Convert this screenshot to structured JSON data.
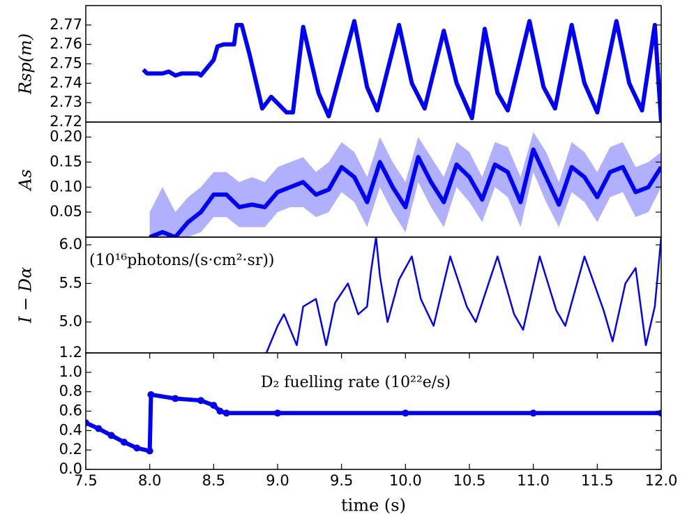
{
  "chart_data": [
    {
      "type": "line",
      "ylabel": "Rsp(m)",
      "color": "#0000ff",
      "xlim": [
        7.5,
        12.0
      ],
      "ylim": [
        2.72,
        2.78
      ],
      "yticks": [
        2.72,
        2.73,
        2.74,
        2.75,
        2.76,
        2.77
      ],
      "x": [
        7.95,
        7.98,
        8.05,
        8.1,
        8.15,
        8.2,
        8.25,
        8.3,
        8.38,
        8.4,
        8.45,
        8.5,
        8.53,
        8.58,
        8.62,
        8.66,
        8.68,
        8.72,
        8.78,
        8.88,
        8.95,
        9.07,
        9.12,
        9.2,
        9.32,
        9.4,
        9.6,
        9.7,
        9.78,
        9.95,
        10.05,
        10.15,
        10.3,
        10.4,
        10.52,
        10.62,
        10.72,
        10.8,
        10.97,
        11.08,
        11.17,
        11.3,
        11.4,
        11.5,
        11.65,
        11.75,
        11.85,
        11.95,
        12.0
      ],
      "values": [
        2.747,
        2.745,
        2.745,
        2.745,
        2.746,
        2.744,
        2.745,
        2.745,
        2.745,
        2.744,
        2.748,
        2.752,
        2.759,
        2.76,
        2.76,
        2.76,
        2.77,
        2.77,
        2.755,
        2.727,
        2.733,
        2.725,
        2.725,
        2.769,
        2.735,
        2.723,
        2.772,
        2.738,
        2.726,
        2.77,
        2.74,
        2.727,
        2.767,
        2.74,
        2.722,
        2.768,
        2.735,
        2.726,
        2.772,
        2.738,
        2.727,
        2.77,
        2.74,
        2.725,
        2.772,
        2.74,
        2.726,
        2.77,
        2.72
      ]
    },
    {
      "type": "line",
      "ylabel": "As",
      "color": "#0000ff",
      "band_color": "#b0b0ff",
      "xlim": [
        7.5,
        12.0
      ],
      "ylim": [
        0,
        0.23
      ],
      "yticks": [
        0.05,
        {
          "value": 0.1,
          "label": "0.10"
        },
        0.15,
        {
          "value": 0.2,
          "label": "0.20"
        }
      ],
      "x": [
        8.0,
        8.1,
        8.2,
        8.3,
        8.4,
        8.5,
        8.6,
        8.7,
        8.8,
        8.9,
        9.0,
        9.1,
        9.2,
        9.3,
        9.4,
        9.5,
        9.6,
        9.7,
        9.8,
        9.9,
        10.0,
        10.1,
        10.2,
        10.3,
        10.4,
        10.5,
        10.6,
        10.7,
        10.8,
        10.9,
        11.0,
        11.1,
        11.2,
        11.3,
        11.4,
        11.5,
        11.6,
        11.7,
        11.8,
        11.9,
        12.0
      ],
      "values": [
        0.0,
        0.01,
        0.0,
        0.03,
        0.05,
        0.085,
        0.085,
        0.06,
        0.065,
        0.06,
        0.09,
        0.1,
        0.11,
        0.085,
        0.095,
        0.14,
        0.12,
        0.07,
        0.15,
        0.1,
        0.06,
        0.16,
        0.11,
        0.07,
        0.145,
        0.12,
        0.075,
        0.145,
        0.13,
        0.07,
        0.175,
        0.12,
        0.065,
        0.14,
        0.12,
        0.08,
        0.13,
        0.14,
        0.09,
        0.1,
        0.14
      ],
      "lower": [
        -0.03,
        -0.02,
        -0.03,
        0.0,
        0.01,
        0.04,
        0.04,
        0.02,
        0.02,
        0.02,
        0.05,
        0.06,
        0.06,
        0.04,
        0.05,
        0.09,
        0.07,
        0.02,
        0.1,
        0.05,
        0.01,
        0.11,
        0.06,
        0.02,
        0.1,
        0.07,
        0.03,
        0.1,
        0.08,
        0.02,
        0.13,
        0.07,
        0.02,
        0.09,
        0.07,
        0.03,
        0.08,
        0.09,
        0.04,
        0.05,
        0.1
      ],
      "upper": [
        0.05,
        0.1,
        0.05,
        0.08,
        0.1,
        0.13,
        0.13,
        0.11,
        0.12,
        0.11,
        0.14,
        0.15,
        0.16,
        0.13,
        0.15,
        0.19,
        0.17,
        0.12,
        0.2,
        0.15,
        0.11,
        0.2,
        0.16,
        0.12,
        0.19,
        0.17,
        0.12,
        0.19,
        0.18,
        0.12,
        0.21,
        0.17,
        0.11,
        0.19,
        0.17,
        0.13,
        0.18,
        0.19,
        0.14,
        0.15,
        0.17
      ]
    },
    {
      "type": "line",
      "ylabel": "I − Dα",
      "annotation": "(10¹⁶photons/(s·cm²·sr))",
      "color": "#0000ff",
      "xlim": [
        7.5,
        12.0
      ],
      "ylim": [
        4.6,
        6.1
      ],
      "yticks": [
        {
          "value": 5.0,
          "label": "5.0"
        },
        5.5,
        {
          "value": 6.0,
          "label": "6.0"
        }
      ],
      "x": [
        8.5,
        8.9,
        9.0,
        9.05,
        9.1,
        9.15,
        9.2,
        9.3,
        9.38,
        9.45,
        9.55,
        9.63,
        9.7,
        9.73,
        9.77,
        9.8,
        9.86,
        9.95,
        10.05,
        10.12,
        10.22,
        10.35,
        10.48,
        10.55,
        10.72,
        10.85,
        10.92,
        11.05,
        11.18,
        11.25,
        11.4,
        11.55,
        11.62,
        11.72,
        11.8,
        11.88,
        11.95,
        12.0
      ],
      "values": [
        4.58,
        4.55,
        4.95,
        5.1,
        4.9,
        4.7,
        5.2,
        5.3,
        4.7,
        5.25,
        5.5,
        5.1,
        5.2,
        5.65,
        6.1,
        5.6,
        5.0,
        5.55,
        5.85,
        5.3,
        4.95,
        5.85,
        5.2,
        5.0,
        5.85,
        5.1,
        4.9,
        5.85,
        5.15,
        4.95,
        5.85,
        5.15,
        4.75,
        5.5,
        5.7,
        4.7,
        5.2,
        6.1
      ]
    },
    {
      "type": "line",
      "annotation": "D₂ fuelling rate (10²²e/s)",
      "xlabel": "time (s)",
      "color": "#0000ff",
      "xlim": [
        7.5,
        12.0
      ],
      "ylim": [
        0,
        1.2
      ],
      "yticks": [
        {
          "value": 0,
          "label": "0.0"
        },
        0.2,
        0.4,
        0.6,
        0.8,
        {
          "value": 1,
          "label": "1.0"
        },
        1.2
      ],
      "xticks": [
        7.5,
        {
          "value": 8,
          "label": "8.0"
        },
        8.5,
        {
          "value": 9,
          "label": "9.0"
        },
        9.5,
        {
          "value": 10,
          "label": "10.0"
        },
        10.5,
        {
          "value": 11,
          "label": "11.0"
        },
        11.5,
        {
          "value": 12,
          "label": "12.0"
        }
      ],
      "x": [
        7.5,
        7.6,
        7.7,
        7.8,
        7.9,
        8.0,
        8.01,
        8.2,
        8.4,
        8.5,
        8.55,
        8.6,
        9.0,
        10.0,
        11.0,
        12.0
      ],
      "values": [
        0.48,
        0.42,
        0.35,
        0.28,
        0.22,
        0.19,
        0.77,
        0.73,
        0.71,
        0.66,
        0.6,
        0.58,
        0.58,
        0.58,
        0.58,
        0.58
      ]
    }
  ]
}
